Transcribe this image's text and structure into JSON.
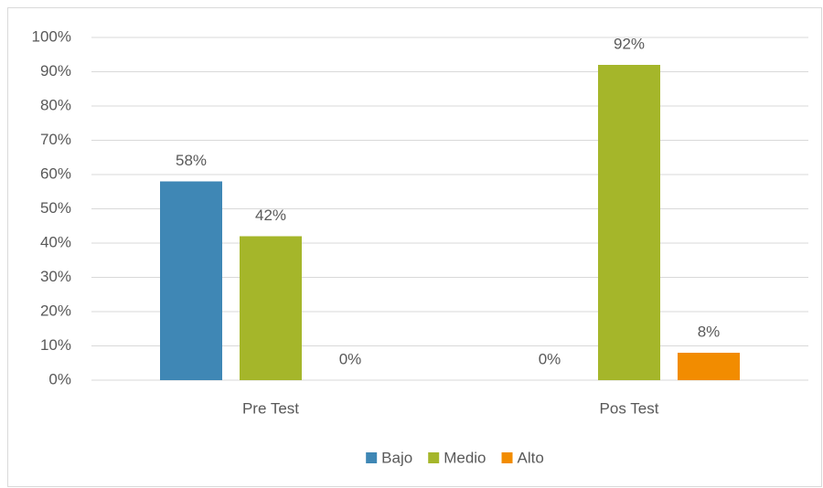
{
  "chart_data": {
    "type": "bar",
    "categories": [
      "Pre Test",
      "Pos Test"
    ],
    "series": [
      {
        "name": "Bajo",
        "color": "#3f87b5",
        "values": [
          58,
          0
        ],
        "value_labels": [
          "58%",
          "0%"
        ]
      },
      {
        "name": "Medio",
        "color": "#a5b62a",
        "values": [
          42,
          92
        ],
        "value_labels": [
          "42%",
          "92%"
        ]
      },
      {
        "name": "Alto",
        "color": "#f28c00",
        "values": [
          0,
          8
        ],
        "value_labels": [
          "0%",
          "8%"
        ]
      }
    ],
    "ylim": [
      0,
      100
    ],
    "yticks": [
      {
        "value": 0,
        "label": "0%"
      },
      {
        "value": 10,
        "label": "10%"
      },
      {
        "value": 20,
        "label": "20%"
      },
      {
        "value": 30,
        "label": "30%"
      },
      {
        "value": 40,
        "label": "40%"
      },
      {
        "value": 50,
        "label": "50%"
      },
      {
        "value": 60,
        "label": "60%"
      },
      {
        "value": 70,
        "label": "70%"
      },
      {
        "value": 80,
        "label": "80%"
      },
      {
        "value": 90,
        "label": "90%"
      },
      {
        "value": 100,
        "label": "100%"
      }
    ],
    "grid": true,
    "legend": "bottom"
  }
}
